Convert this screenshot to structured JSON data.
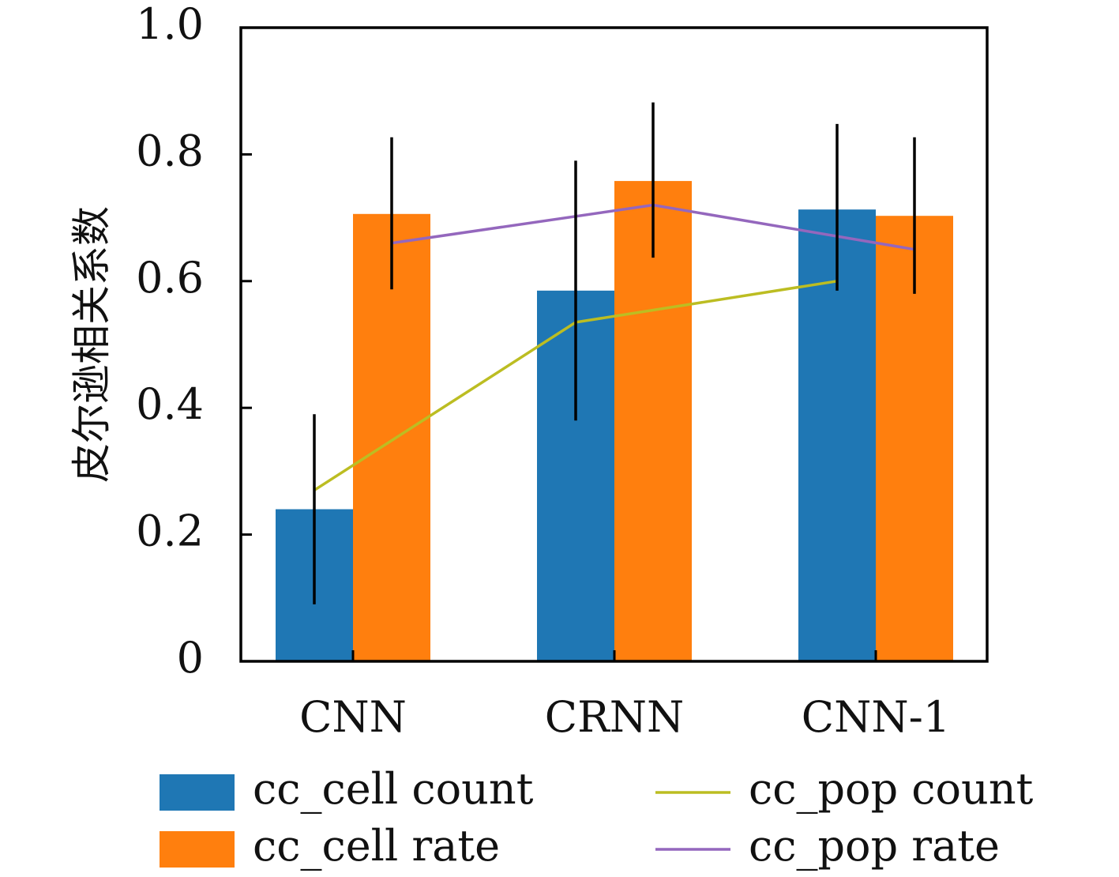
{
  "chart_data": {
    "type": "bar",
    "title": "",
    "xlabel": "",
    "ylabel": "皮尔逊相关系数",
    "ylim": [
      0,
      1.0
    ],
    "yticks": [
      0,
      0.2,
      0.4,
      0.6,
      0.8,
      1.0
    ],
    "ytick_labels": [
      "0",
      "0.2",
      "0.4",
      "0.6",
      "0.8",
      "1.0"
    ],
    "categories": [
      "CNN",
      "CRNN",
      "CNN-1"
    ],
    "series": [
      {
        "name": "cc_cell count",
        "kind": "bar",
        "color": "#1f77b4",
        "values": [
          0.24,
          0.585,
          0.713
        ],
        "error_low": [
          0.09,
          0.38,
          0.585
        ],
        "error_high": [
          0.39,
          0.79,
          0.848
        ]
      },
      {
        "name": "cc_cell rate",
        "kind": "bar",
        "color": "#ff7f0e",
        "values": [
          0.706,
          0.758,
          0.703
        ],
        "error_low": [
          0.587,
          0.637,
          0.58
        ],
        "error_high": [
          0.827,
          0.882,
          0.827
        ]
      },
      {
        "name": "cc_pop count",
        "kind": "line",
        "color": "#bcbd22",
        "values": [
          0.27,
          0.535,
          0.6
        ]
      },
      {
        "name": "cc_pop rate",
        "kind": "line",
        "color": "#9467bd",
        "values": [
          0.66,
          0.72,
          0.65
        ]
      }
    ],
    "grid": false,
    "legend_position": "bottom"
  }
}
